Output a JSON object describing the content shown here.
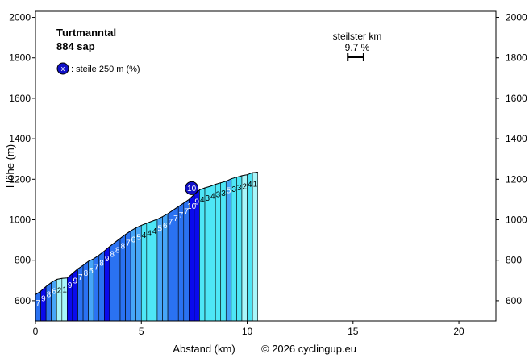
{
  "chart_data": {
    "type": "area",
    "title": "Turtmanntal",
    "subtitle": "884 sap",
    "xlabel": "Abstand (km)",
    "ylabel": "Höhe (m)",
    "credit": "© 2026 cyclingup.eu",
    "legend_text": ": steile 250 m (%)",
    "legend_marker": "x",
    "steepest_label": "steilster km",
    "steepest_value": "9.7 %",
    "steepest_badge": "10",
    "xlim": [
      0,
      21.75
    ],
    "ylim": [
      500,
      2030
    ],
    "x_ticks": [
      0,
      5,
      10,
      15,
      20
    ],
    "y_ticks": [
      600,
      800,
      1000,
      1200,
      1400,
      1600,
      1800,
      2000
    ],
    "grid": false,
    "segment_length_km": 0.25,
    "start_elevation": 630,
    "gradients": [
      "7",
      "9",
      "8",
      "6",
      "2",
      "1",
      "9",
      "9",
      "7",
      "8",
      "5",
      "7",
      "8",
      "9",
      "8",
      "8",
      "8",
      "7",
      "6",
      "5",
      "4",
      "4",
      "4",
      "5",
      "6",
      "7",
      "7",
      "7",
      "7",
      "10",
      "9",
      "4",
      "3",
      "4",
      "3",
      "3",
      "5",
      "3",
      "3",
      "2",
      "4",
      "1"
    ],
    "steepest_km": [
      14.75,
      15.5
    ],
    "badge_segment": 29
  }
}
